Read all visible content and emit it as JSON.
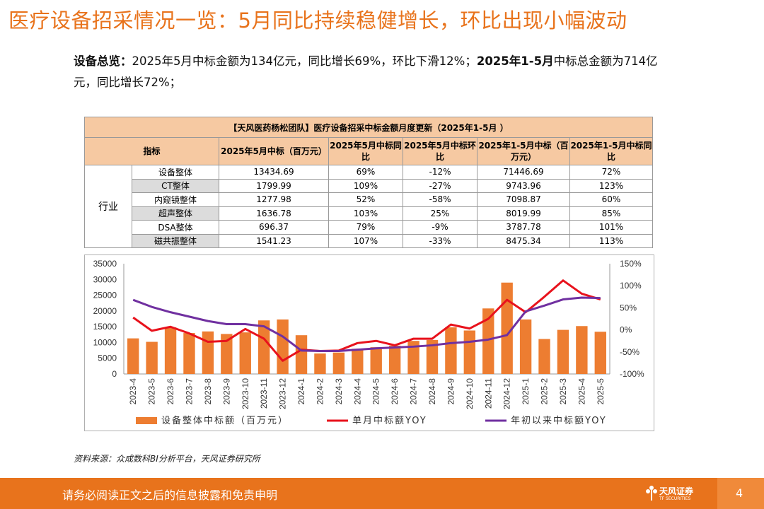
{
  "title": "医疗设备招采情况一览：5月同比持续稳健增长，环比出现小幅波动",
  "summary": {
    "p1": "设备总览：",
    "p2": "2025年5月中标金额为134亿元，同比增长69%，环比下滑12%；",
    "p3": "2025年1-5月",
    "p4": "中标总金额为714亿元，同比增长72%；"
  },
  "table": {
    "caption": "【天风医药杨松团队】医疗设备招采中标金额月度更新（2025年1-5月 ）",
    "headers": [
      "指标",
      "2025年5月中标（百万元）",
      "2025年5月中标同比",
      "2025年5月中标环比",
      "2025年1-5月中标（百万元）",
      "2025年1-5月中标同比"
    ],
    "category": "行业",
    "rows": [
      {
        "name": "设备整体",
        "v1": "13434.69",
        "v2": "69%",
        "v3": "-12%",
        "v4": "71446.69",
        "v5": "72%"
      },
      {
        "name": "CT整体",
        "v1": "1799.99",
        "v2": "109%",
        "v3": "-27%",
        "v4": "9743.96",
        "v5": "123%"
      },
      {
        "name": "内窥镜整体",
        "v1": "1277.98",
        "v2": "52%",
        "v3": "-58%",
        "v4": "7098.87",
        "v5": "60%"
      },
      {
        "name": "超声整体",
        "v1": "1636.78",
        "v2": "103%",
        "v3": "25%",
        "v4": "8019.99",
        "v5": "85%"
      },
      {
        "name": "DSA整体",
        "v1": "696.37",
        "v2": "79%",
        "v3": "-9%",
        "v4": "3787.78",
        "v5": "101%"
      },
      {
        "name": "磁共振整体",
        "v1": "1541.23",
        "v2": "107%",
        "v3": "-33%",
        "v4": "8475.34",
        "v5": "113%"
      }
    ]
  },
  "chart_data": {
    "type": "bar",
    "categories": [
      "2023-4",
      "2023-5",
      "2023-6",
      "2023-7",
      "2023-8",
      "2023-9",
      "2023-10",
      "2023-11",
      "2023-12",
      "2024-1",
      "2024-2",
      "2024-3",
      "2024-4",
      "2024-5",
      "2024-6",
      "2024-7",
      "2024-8",
      "2024-9",
      "2024-10",
      "2024-11",
      "2024-12",
      "2025-1",
      "2025-2",
      "2025-3",
      "2025-4",
      "2025-5"
    ],
    "series": [
      {
        "name": "设备整体中标额（百万元）",
        "type": "bar",
        "axis": "left",
        "color": "#ed7d31",
        "values": [
          11300,
          10200,
          14800,
          13000,
          13500,
          12700,
          13200,
          17000,
          17300,
          12300,
          6500,
          6800,
          8000,
          8500,
          9000,
          10500,
          10800,
          14800,
          13800,
          20800,
          29000,
          17300,
          11100,
          14000,
          15200,
          13400
        ]
      },
      {
        "name": "单月中标额YOY",
        "type": "line",
        "axis": "right",
        "color": "#e8121c",
        "values": [
          28,
          -2,
          7,
          -8,
          -27,
          -25,
          2,
          -20,
          -70,
          -45,
          -48,
          -47,
          -30,
          -25,
          -35,
          -20,
          -20,
          12,
          3,
          25,
          68,
          40,
          75,
          112,
          82,
          69
        ]
      },
      {
        "name": "年初以来中标额YOY",
        "type": "line",
        "axis": "right",
        "color": "#7030a0",
        "values": [
          68,
          52,
          40,
          30,
          20,
          13,
          13,
          8,
          -15,
          -47,
          -48,
          -48,
          -45,
          -42,
          -40,
          -38,
          -35,
          -30,
          -27,
          -22,
          -12,
          42,
          55,
          69,
          73,
          72
        ]
      }
    ],
    "y_left": {
      "min": 0,
      "max": 35000,
      "ticks": [
        "0",
        "5000",
        "10000",
        "15000",
        "20000",
        "25000",
        "30000",
        "35000"
      ]
    },
    "y_right": {
      "min": -100,
      "max": 150,
      "ticks": [
        "-100%",
        "-50%",
        "0%",
        "50%",
        "100%",
        "150%"
      ]
    },
    "legend": "bottom",
    "grid": false
  },
  "source": "资料来源：众成数科BI分析平台，天风证券研究所",
  "footer": {
    "disclaimer": "请务必阅读正文之后的信息披露和免责申明",
    "logo_text": "天风证券",
    "logo_sub": "TF SECURITIES",
    "page": "4"
  }
}
